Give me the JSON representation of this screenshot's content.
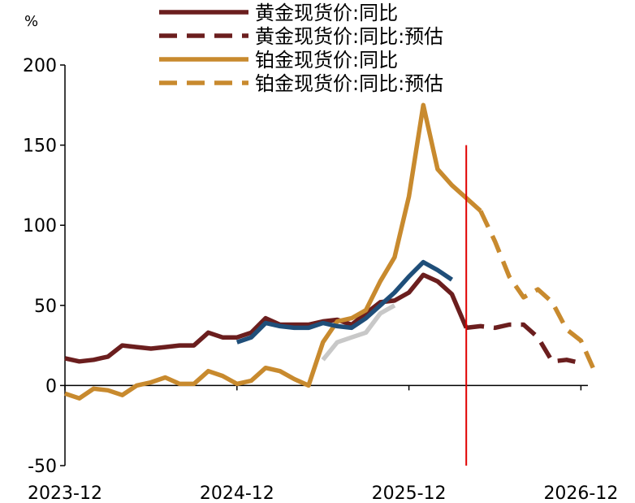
{
  "chart_data": {
    "type": "line",
    "unit": "%",
    "title": "",
    "xlabel": "",
    "ylabel": "",
    "x_ticks": [
      "2023-12",
      "2024-12",
      "2025-12",
      "2026-12"
    ],
    "y_ticks": [
      200,
      150,
      100,
      50,
      0,
      -50
    ],
    "ylim": [
      -50,
      200
    ],
    "x_range": [
      "2023-12",
      "2027-01"
    ],
    "grid": false,
    "legend_position": "top",
    "vertical_marker": {
      "x": "2026-04",
      "color": "#e00000"
    },
    "series": [
      {
        "name": "黄金现货价:同比",
        "color": "#6b1e1e",
        "dash": "solid",
        "points": [
          [
            "2023-12",
            17
          ],
          [
            "2024-01",
            15
          ],
          [
            "2024-02",
            16
          ],
          [
            "2024-03",
            18
          ],
          [
            "2024-04",
            25
          ],
          [
            "2024-05",
            24
          ],
          [
            "2024-06",
            23
          ],
          [
            "2024-07",
            24
          ],
          [
            "2024-08",
            25
          ],
          [
            "2024-09",
            25
          ],
          [
            "2024-10",
            33
          ],
          [
            "2024-11",
            30
          ],
          [
            "2024-12",
            30
          ],
          [
            "2025-01",
            33
          ],
          [
            "2025-02",
            42
          ],
          [
            "2025-03",
            38
          ],
          [
            "2025-04",
            38
          ],
          [
            "2025-05",
            38
          ],
          [
            "2025-06",
            40
          ],
          [
            "2025-07",
            41
          ],
          [
            "2025-08",
            38
          ],
          [
            "2025-09",
            45
          ],
          [
            "2025-10",
            52
          ],
          [
            "2025-11",
            53
          ],
          [
            "2025-12",
            58
          ],
          [
            "2026-01",
            69
          ],
          [
            "2026-02",
            65
          ],
          [
            "2026-03",
            57
          ],
          [
            "2026-04",
            36
          ]
        ]
      },
      {
        "name": "黄金现货价:同比:预估",
        "color": "#6b1e1e",
        "dash": "dashed",
        "points": [
          [
            "2026-04",
            36
          ],
          [
            "2026-05",
            37
          ],
          [
            "2026-06",
            36
          ],
          [
            "2026-07",
            38
          ],
          [
            "2026-08",
            38
          ],
          [
            "2026-09",
            30
          ],
          [
            "2026-10",
            15
          ],
          [
            "2026-11",
            16
          ],
          [
            "2026-12",
            14
          ]
        ]
      },
      {
        "name": "铂金现货价:同比",
        "color": "#c88a2e",
        "dash": "solid",
        "points": [
          [
            "2023-12",
            -5
          ],
          [
            "2024-01",
            -8
          ],
          [
            "2024-02",
            -2
          ],
          [
            "2024-03",
            -3
          ],
          [
            "2024-04",
            -6
          ],
          [
            "2024-05",
            0
          ],
          [
            "2024-06",
            2
          ],
          [
            "2024-07",
            5
          ],
          [
            "2024-08",
            1
          ],
          [
            "2024-09",
            1
          ],
          [
            "2024-10",
            9
          ],
          [
            "2024-11",
            6
          ],
          [
            "2024-12",
            1
          ],
          [
            "2025-01",
            3
          ],
          [
            "2025-02",
            11
          ],
          [
            "2025-03",
            9
          ],
          [
            "2025-04",
            4
          ],
          [
            "2025-05",
            0
          ],
          [
            "2025-06",
            27
          ],
          [
            "2025-07",
            40
          ],
          [
            "2025-08",
            42
          ],
          [
            "2025-09",
            47
          ],
          [
            "2025-10",
            65
          ],
          [
            "2025-11",
            80
          ],
          [
            "2025-12",
            118
          ],
          [
            "2026-01",
            175
          ],
          [
            "2026-02",
            135
          ],
          [
            "2026-03",
            125
          ],
          [
            "2026-04",
            117
          ],
          [
            "2026-05",
            109
          ]
        ]
      },
      {
        "name": "铂金现货价:同比:预估",
        "color": "#c88a2e",
        "dash": "dashed",
        "points": [
          [
            "2026-05",
            109
          ],
          [
            "2026-06",
            90
          ],
          [
            "2026-07",
            68
          ],
          [
            "2026-08",
            55
          ],
          [
            "2026-09",
            60
          ],
          [
            "2026-10",
            52
          ],
          [
            "2026-11",
            35
          ],
          [
            "2026-12",
            28
          ],
          [
            "2027-01",
            8
          ]
        ]
      },
      {
        "name": "",
        "color": "#1f4e79",
        "dash": "solid",
        "points": [
          [
            "2024-12",
            27
          ],
          [
            "2025-01",
            30
          ],
          [
            "2025-02",
            39
          ],
          [
            "2025-03",
            37
          ],
          [
            "2025-04",
            36
          ],
          [
            "2025-05",
            36
          ],
          [
            "2025-06",
            39
          ],
          [
            "2025-07",
            37
          ],
          [
            "2025-08",
            36
          ],
          [
            "2025-09",
            42
          ],
          [
            "2025-10",
            50
          ],
          [
            "2025-11",
            58
          ],
          [
            "2025-12",
            68
          ],
          [
            "2026-01",
            77
          ],
          [
            "2026-02",
            72
          ],
          [
            "2026-03",
            66
          ]
        ]
      },
      {
        "name": "",
        "color": "#c8c8c8",
        "dash": "solid",
        "points": [
          [
            "2025-06",
            16
          ],
          [
            "2025-07",
            27
          ],
          [
            "2025-08",
            30
          ],
          [
            "2025-09",
            33
          ],
          [
            "2025-10",
            45
          ],
          [
            "2025-11",
            50
          ]
        ]
      }
    ]
  }
}
